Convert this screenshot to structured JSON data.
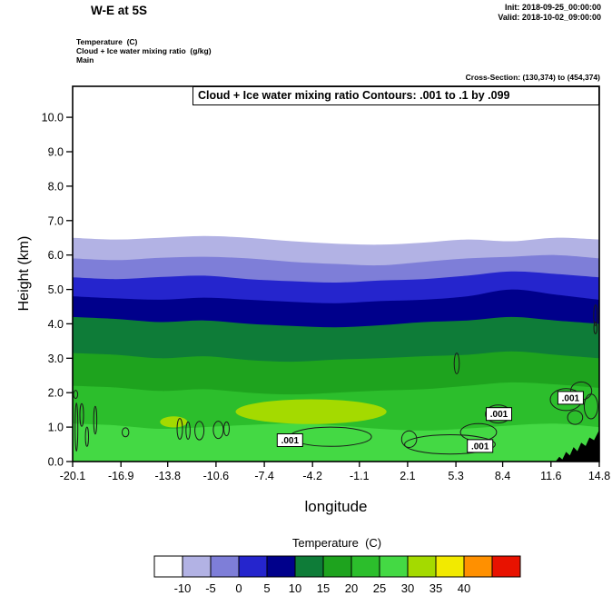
{
  "header": {
    "title": "W-E at 5S",
    "init": "Init: 2018-09-25_00:00:00",
    "valid": "Valid: 2018-10-02_09:00:00",
    "legend_lines": [
      "Temperature  (C)",
      "Cloud + Ice water mixing ratio  (g/kg)",
      "Main"
    ],
    "cross_section": "Cross-Section: (130,374) to (454,374)"
  },
  "chart_data": {
    "type": "heatmap",
    "subtype": "filled-contour-vertical-cross-section",
    "title": "Cloud + Ice water mixing ratio Contours: .001 to .1 by .099",
    "xlabel": "longitude",
    "ylabel": "Height (km)",
    "xlim": [
      -20.1,
      14.8
    ],
    "ylim": [
      0,
      10.9
    ],
    "x_tick_labels": [
      "-20.1",
      "-16.9",
      "-13.8",
      "-10.6",
      "-7.4",
      "-4.2",
      "-1.1",
      "2.1",
      "5.3",
      "8.4",
      "11.6",
      "14.8"
    ],
    "y_tick_labels": [
      "0.0",
      "1.0",
      "2.0",
      "3.0",
      "4.0",
      "5.0",
      "6.0",
      "7.0",
      "8.0",
      "9.0",
      "10.0"
    ],
    "colorbar": {
      "title": "Temperature  (C)",
      "tick_labels": [
        "-10",
        "-5",
        "0",
        "5",
        "10",
        "15",
        "20",
        "25",
        "30",
        "35",
        "40"
      ],
      "colors": [
        "#ffffff",
        "#b2b2e4",
        "#7e7ed8",
        "#2525cd",
        "#00008b",
        "#0e7c38",
        "#1ea31e",
        "#2cbe2c",
        "#44d944",
        "#a4da00",
        "#f2ea00",
        "#ff9000",
        "#e81200"
      ]
    },
    "temperature_bands": [
      {
        "name": "-10 to -5 C",
        "color_index": 1,
        "top_boundary_km": [
          6.5,
          6.45,
          6.5,
          6.55,
          6.5,
          6.4,
          6.33,
          6.3,
          6.36,
          6.45,
          6.4,
          6.5,
          6.45
        ]
      },
      {
        "name": "-5 to 0 C",
        "color_index": 2,
        "top_boundary_km": [
          5.9,
          5.85,
          5.92,
          5.95,
          5.9,
          5.8,
          5.74,
          5.7,
          5.8,
          5.9,
          5.95,
          6.0,
          5.9
        ]
      },
      {
        "name": "0 to 5 C",
        "color_index": 3,
        "top_boundary_km": [
          5.35,
          5.3,
          5.36,
          5.4,
          5.3,
          5.24,
          5.2,
          5.26,
          5.3,
          5.4,
          5.52,
          5.45,
          5.35
        ]
      },
      {
        "name": "5 to 10 C",
        "color_index": 4,
        "top_boundary_km": [
          4.8,
          4.74,
          4.7,
          4.76,
          4.7,
          4.64,
          4.6,
          4.66,
          4.7,
          4.8,
          5.0,
          4.85,
          4.7
        ]
      },
      {
        "name": "10 to 15 C",
        "color_index": 5,
        "top_boundary_km": [
          4.2,
          4.14,
          4.05,
          4.1,
          4.0,
          3.94,
          3.9,
          3.96,
          4.05,
          4.1,
          4.2,
          4.1,
          4.0
        ]
      },
      {
        "name": "15 to 20 C",
        "color_index": 6,
        "top_boundary_km": [
          3.15,
          3.1,
          3.0,
          3.06,
          2.95,
          2.9,
          2.96,
          3.0,
          3.06,
          3.1,
          3.2,
          3.1,
          3.0
        ]
      },
      {
        "name": "20 to 25 C",
        "color_index": 7,
        "top_boundary_km": [
          2.2,
          2.15,
          2.05,
          2.1,
          2.0,
          1.95,
          2.0,
          2.06,
          2.1,
          2.2,
          2.3,
          2.24,
          2.14
        ]
      },
      {
        "name": "25 to 30 C",
        "color_index": 8,
        "top_boundary_km": [
          1.1,
          1.05,
          0.95,
          1.0,
          1.06,
          1.1,
          1.05,
          0.95,
          0.9,
          0.96,
          1.05,
          1.1,
          1.0
        ]
      }
    ],
    "warm_patches": [
      {
        "lon": -4.3,
        "height_km": 1.45,
        "rlon": 5.0,
        "rheight": 0.36,
        "color_index": 9
      },
      {
        "lon": -13.4,
        "height_km": 1.15,
        "rlon": 0.9,
        "rheight": 0.16,
        "color_index": 9
      }
    ],
    "terrain": {
      "color": "#000000",
      "profile": [
        [
          11.9,
          0.0
        ],
        [
          12.15,
          0.14
        ],
        [
          12.35,
          0.06
        ],
        [
          12.6,
          0.28
        ],
        [
          12.85,
          0.18
        ],
        [
          13.1,
          0.42
        ],
        [
          13.35,
          0.3
        ],
        [
          13.6,
          0.55
        ],
        [
          13.9,
          0.45
        ],
        [
          14.15,
          0.7
        ],
        [
          14.45,
          0.62
        ],
        [
          14.8,
          0.92
        ]
      ]
    },
    "cloud_contours": {
      "level_label": ".001",
      "ellipses": [
        [
          -19.85,
          1.0,
          0.09,
          0.7
        ],
        [
          -19.5,
          1.35,
          0.12,
          0.33
        ],
        [
          -19.15,
          0.72,
          0.1,
          0.28
        ],
        [
          -18.6,
          1.2,
          0.1,
          0.4
        ],
        [
          -19.9,
          1.95,
          0.14,
          0.12
        ],
        [
          -16.6,
          0.85,
          0.22,
          0.13
        ],
        [
          -13.0,
          0.95,
          0.18,
          0.3
        ],
        [
          -12.45,
          0.9,
          0.14,
          0.25
        ],
        [
          -11.7,
          0.9,
          0.3,
          0.27
        ],
        [
          -10.45,
          0.92,
          0.33,
          0.25
        ],
        [
          -9.9,
          0.95,
          0.18,
          0.2
        ],
        [
          -3.0,
          0.72,
          2.7,
          0.28
        ],
        [
          2.2,
          0.65,
          0.5,
          0.24
        ],
        [
          4.9,
          0.5,
          3.0,
          0.28
        ],
        [
          6.8,
          0.85,
          1.2,
          0.25
        ],
        [
          5.35,
          2.85,
          0.17,
          0.3
        ],
        [
          8.1,
          1.38,
          0.85,
          0.26
        ],
        [
          12.6,
          1.8,
          1.05,
          0.32
        ],
        [
          13.6,
          2.05,
          0.7,
          0.26
        ],
        [
          14.25,
          1.6,
          0.45,
          0.36
        ],
        [
          13.2,
          1.28,
          0.5,
          0.2
        ],
        [
          14.55,
          4.25,
          0.12,
          0.3
        ],
        [
          14.55,
          3.88,
          0.1,
          0.17
        ]
      ],
      "labels": [
        [
          -5.7,
          0.62
        ],
        [
          6.9,
          0.45
        ],
        [
          8.15,
          1.38
        ],
        [
          12.9,
          1.85
        ]
      ]
    }
  }
}
